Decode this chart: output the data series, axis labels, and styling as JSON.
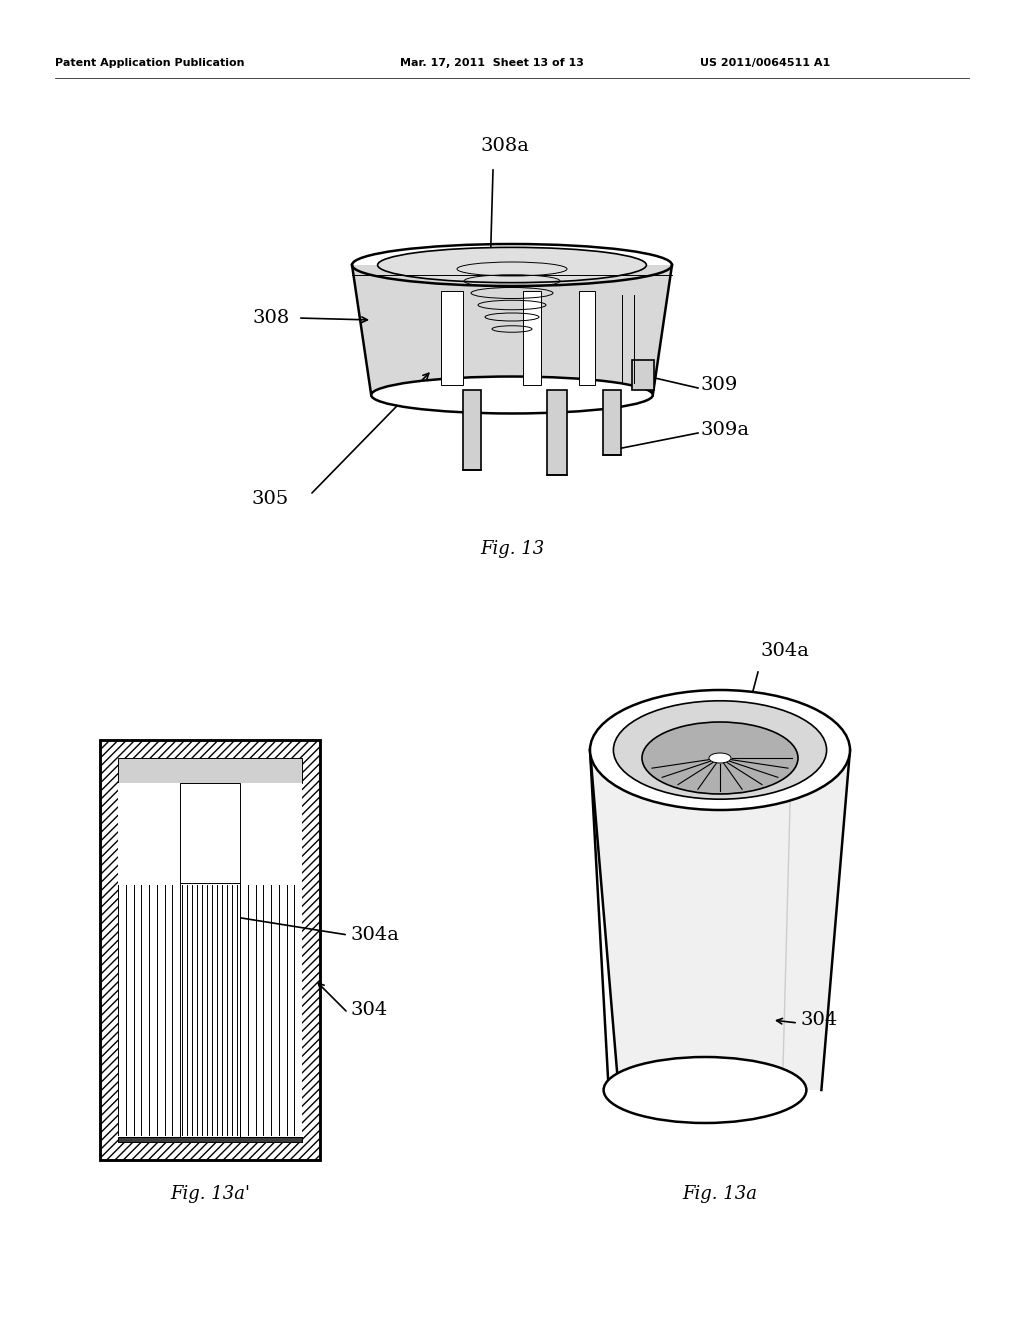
{
  "header_left": "Patent Application Publication",
  "header_mid": "Mar. 17, 2011  Sheet 13 of 13",
  "header_right": "US 2011/0064511 A1",
  "fig13_caption": "Fig. 13",
  "fig13a_prime_caption": "Fig. 13a'",
  "fig13a_caption": "Fig. 13a",
  "bg_color": "#ffffff",
  "line_color": "#000000"
}
